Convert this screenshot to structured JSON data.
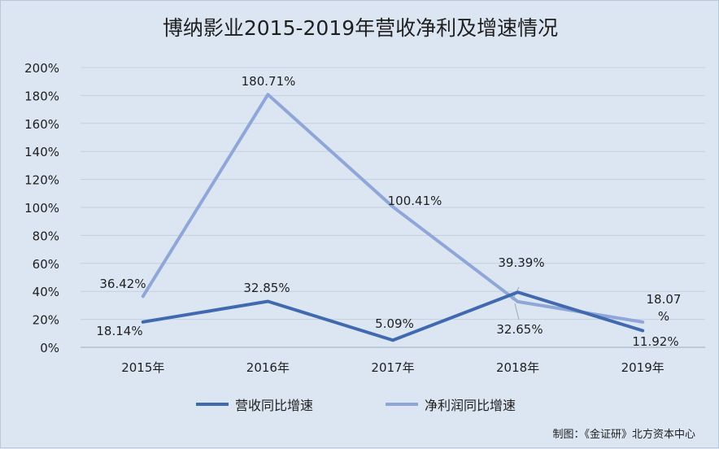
{
  "chart_data": {
    "type": "line",
    "title": "博纳影业2015-2019年营收净利及增速情况",
    "categories": [
      "2015年",
      "2016年",
      "2017年",
      "2018年",
      "2019年"
    ],
    "ylim": [
      0,
      200
    ],
    "ytick_step": 20,
    "ytick_labels": [
      "0%",
      "20%",
      "40%",
      "60%",
      "80%",
      "100%",
      "120%",
      "140%",
      "160%",
      "180%",
      "200%"
    ],
    "grid": true,
    "legend_position": "bottom",
    "series": [
      {
        "name": "营收同比增速",
        "color": "#4169b0",
        "values": [
          18.14,
          32.85,
          5.09,
          39.39,
          11.92
        ],
        "labels": [
          "18.14%",
          "32.85%",
          "5.09%",
          "39.39%",
          "11.92%"
        ]
      },
      {
        "name": "净利润同比增速",
        "color": "#8fa6d8",
        "values": [
          36.42,
          180.71,
          100.41,
          32.65,
          18.07
        ],
        "labels": [
          "36.42%",
          "180.71%",
          "100.41%",
          "32.65%",
          "18.07\n%"
        ]
      }
    ]
  },
  "source_note": "制图：《金证研》北方资本中心"
}
